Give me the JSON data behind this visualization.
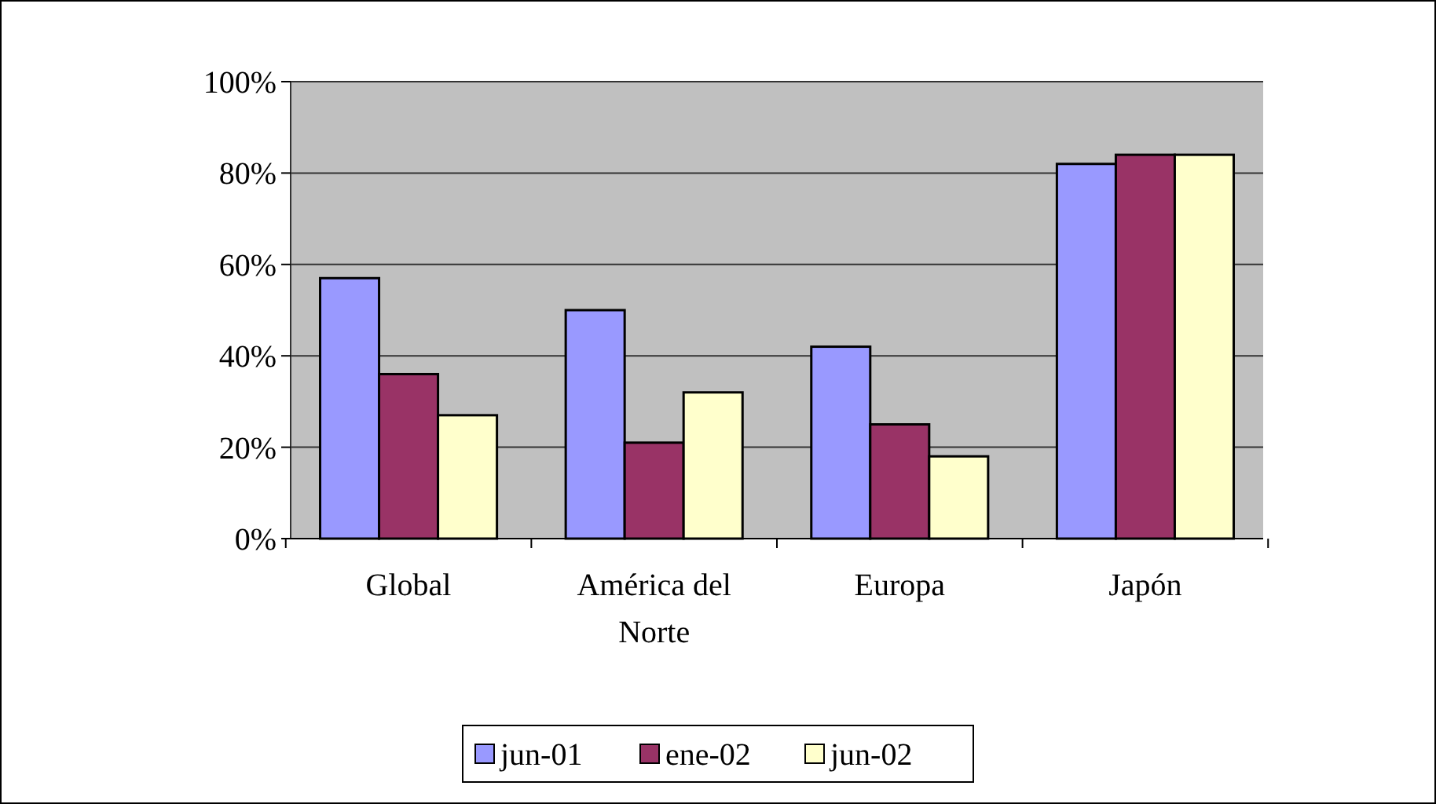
{
  "chart_data": {
    "type": "bar",
    "categories": [
      "Global",
      "América del Norte",
      "Europa",
      "Japón"
    ],
    "series": [
      {
        "name": "jun-01",
        "color": "#9999ff",
        "values": [
          57,
          50,
          42,
          82
        ]
      },
      {
        "name": "ene-02",
        "color": "#993366",
        "values": [
          36,
          21,
          25,
          84
        ]
      },
      {
        "name": "jun-02",
        "color": "#ffffcc",
        "values": [
          27,
          32,
          18,
          84
        ]
      }
    ],
    "ylim": [
      0,
      100
    ],
    "yticks": [
      {
        "value": 0,
        "label": "0%"
      },
      {
        "value": 20,
        "label": "20%"
      },
      {
        "value": 40,
        "label": "40%"
      },
      {
        "value": 60,
        "label": "60%"
      },
      {
        "value": 80,
        "label": "80%"
      },
      {
        "value": 100,
        "label": "100%"
      }
    ],
    "grid": "y",
    "legend": "bottom"
  }
}
